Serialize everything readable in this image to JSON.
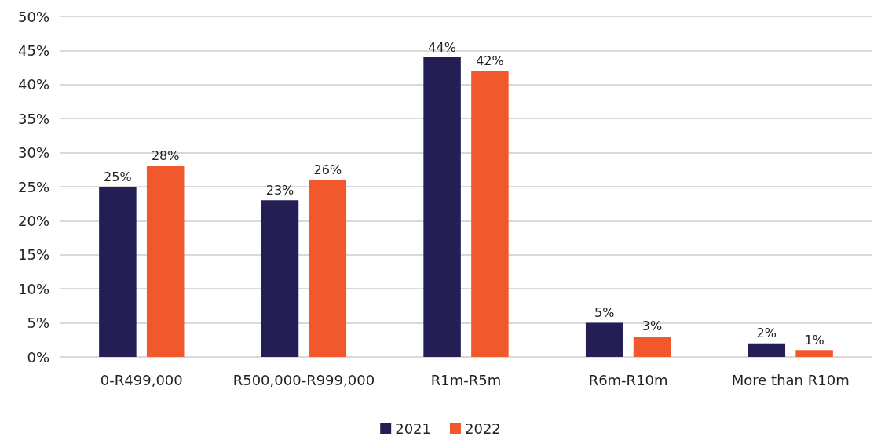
{
  "chart_data": {
    "type": "bar",
    "categories": [
      "0-R499,000",
      "R500,000-R999,000",
      "R1m-R5m",
      "R6m-R10m",
      "More than R10m"
    ],
    "series": [
      {
        "name": "2021",
        "color": "#231f54",
        "values": [
          25,
          23,
          44,
          5,
          2
        ],
        "value_labels": [
          "25%",
          "23%",
          "44%",
          "5%",
          "2%"
        ]
      },
      {
        "name": "2022",
        "color": "#f1582c",
        "values": [
          28,
          26,
          42,
          3,
          1
        ],
        "value_labels": [
          "28%",
          "26%",
          "42%",
          "3%",
          "1%"
        ]
      }
    ],
    "ylim": [
      0,
      50
    ],
    "yticks": [
      {
        "value": 0,
        "label": "0%"
      },
      {
        "value": 5,
        "label": "5%"
      },
      {
        "value": 10,
        "label": "10%"
      },
      {
        "value": 15,
        "label": "15%"
      },
      {
        "value": 20,
        "label": "20%"
      },
      {
        "value": 25,
        "label": "25%"
      },
      {
        "value": 30,
        "label": "30%"
      },
      {
        "value": 35,
        "label": "35%"
      },
      {
        "value": 40,
        "label": "40%"
      },
      {
        "value": 45,
        "label": "45%"
      },
      {
        "value": 50,
        "label": "50%"
      }
    ],
    "grid": "y",
    "legend": "bottom"
  }
}
